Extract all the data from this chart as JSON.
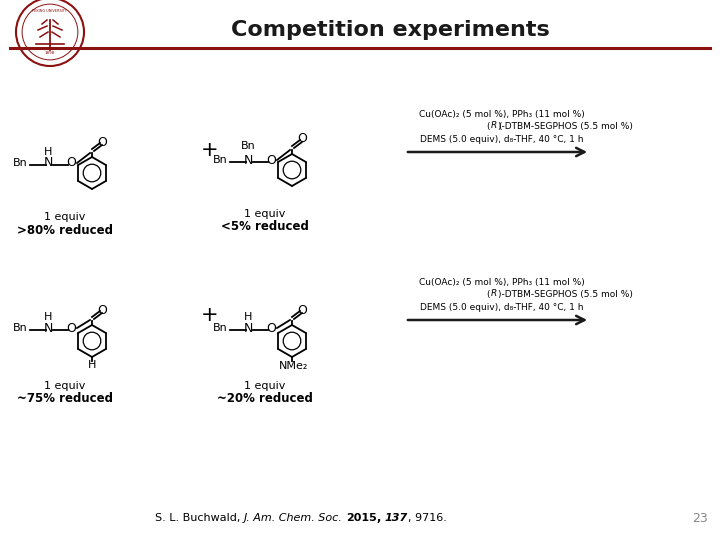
{
  "title": "Competition experiments",
  "title_color": "#1a1a1a",
  "title_fontsize": 16,
  "title_fontweight": "bold",
  "bg_color": "#ffffff",
  "red_line_color": "#8B1010",
  "slide_number": "23",
  "rxn1_line1": "Cu(OAc)₂ (5 mol %), PPh₃ (11 mol %)",
  "rxn1_line2": "(R)-DTBM-SEGPHOS (5.5 mol %)",
  "rxn1_line3": "DEMS (5.0 equiv), d₈-THF, 40 °C, 1 h",
  "rxn2_line1": "Cu(OAc)₂ (5 mol %), PPh₃ (11 mol %)",
  "rxn2_line2": "(R)-DTBM-SEGPHOS (5.5 mol %)",
  "rxn2_line3": "DEMS (5.0 equiv), d₈-THF, 40 °C, 1 h",
  "logo_color": "#8B1010",
  "equiv1a": "1 equiv",
  "result1a": ">80% reduced",
  "equiv1b": "1 equiv",
  "result1b": "<5% reduced",
  "equiv2a": "1 equiv",
  "result2a": "~75% reduced",
  "equiv2b": "1 equiv",
  "result2b": "~20% reduced",
  "arrow_color": "#1a1a1a",
  "struct_color": "#000000"
}
